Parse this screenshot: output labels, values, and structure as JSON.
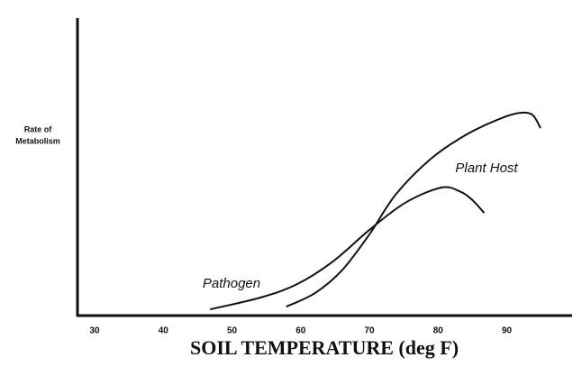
{
  "chart_data": {
    "type": "line",
    "x_label": "SOIL TEMPERATURE (deg F)",
    "y_label": [
      "Rate of",
      "Metabolism"
    ],
    "xlim": [
      27.5,
      99.5
    ],
    "ylim": [
      0,
      100
    ],
    "xticks": [
      30,
      40,
      50,
      60,
      70,
      80,
      90
    ],
    "series": [
      {
        "name": "Pathogen",
        "color": "#111111",
        "x": [
          46.8,
          54.2,
          59.5,
          64.7,
          70.0,
          75.2,
          80.4,
          83.1,
          85.0,
          86.7
        ],
        "values": [
          2.1,
          6.1,
          10.6,
          18.2,
          28.8,
          37.9,
          43.0,
          41.8,
          38.8,
          34.5
        ]
      },
      {
        "name": "Plant Host",
        "color": "#111111",
        "x": [
          57.9,
          62.1,
          66.0,
          70.0,
          73.9,
          79.1,
          84.4,
          89.6,
          92.2,
          93.8,
          94.9
        ],
        "values": [
          3.0,
          7.6,
          15.2,
          27.3,
          40.9,
          53.0,
          61.2,
          66.7,
          68.2,
          67.3,
          63.0
        ]
      }
    ]
  }
}
